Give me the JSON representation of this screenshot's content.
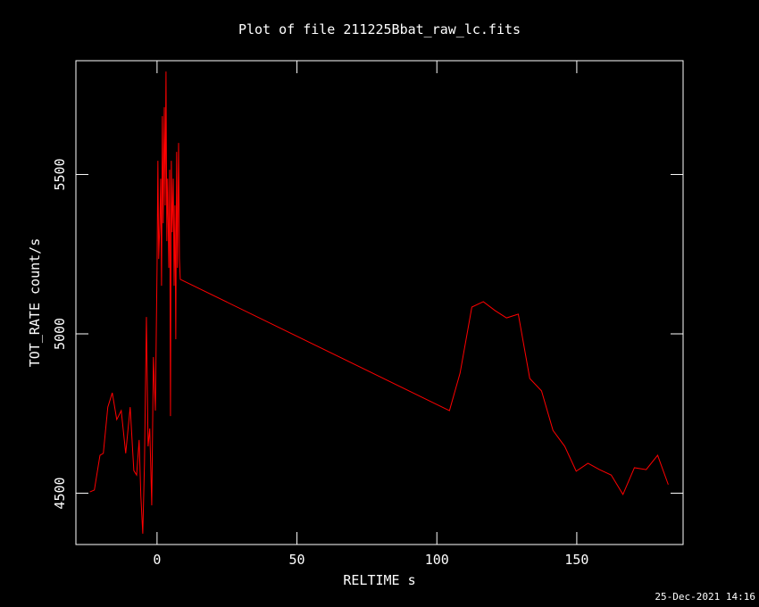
{
  "chart_data": {
    "type": "line",
    "title": "Plot of file 211225Bbat_raw_lc.fits",
    "x_label": "RELTIME  s",
    "y_label": "TOT_RATE  count/s",
    "footer": "25-Dec-2021 14:16",
    "x": [
      -24,
      -22.4,
      -20.4,
      -19.2,
      -17.6,
      -16,
      -14.4,
      -12.8,
      -11.2,
      -9.6,
      -8.3,
      -7.3,
      -6.4,
      -5.8,
      -5.1,
      -4.5,
      -3.8,
      -3.2,
      -2.6,
      -1.9,
      -1.3,
      -0.6,
      0,
      0.3,
      0.6,
      1,
      1.3,
      1.6,
      1.9,
      2.2,
      2.6,
      2.9,
      3.2,
      3.5,
      3.8,
      4.2,
      4.5,
      4.8,
      5.1,
      5.4,
      5.8,
      6.1,
      6.4,
      6.7,
      7,
      7.3,
      7.7,
      8,
      8.3,
      104.5,
      108.3,
      112.5,
      116.6,
      120.8,
      124.9,
      129.1,
      133.2,
      137.4,
      141.5,
      145.7,
      149.8,
      154,
      158.1,
      162.3,
      166.5,
      170.6,
      174.8,
      178.9,
      182.7
    ],
    "series": [
      {
        "color": "#ff0000",
        "values": [
          4504,
          4510,
          4619,
          4625,
          4770,
          4815,
          4731,
          4759,
          4625,
          4770,
          4571,
          4557,
          4667,
          4493,
          4373,
          4591,
          5053,
          4647,
          4703,
          4462,
          4927,
          4759,
          5207,
          5543,
          5235,
          5347,
          5487,
          5151,
          5683,
          5347,
          5711,
          5403,
          5823,
          5291,
          5487,
          5207,
          5515,
          4742,
          5543,
          5319,
          5487,
          5151,
          5403,
          4983,
          5571,
          5207,
          5599,
          5235,
          5171,
          4759,
          4877,
          5084,
          5101,
          5073,
          5050,
          5062,
          4860,
          4821,
          4697,
          4647,
          4569,
          4594,
          4574,
          4557,
          4496,
          4580,
          4574,
          4619,
          4527
        ]
      }
    ],
    "xlim": [
      -29,
      188
    ],
    "ylim": [
      4339,
      5857
    ],
    "xticks": [
      0,
      50,
      100,
      150
    ],
    "yticks": [
      4500,
      5000,
      5500
    ]
  }
}
